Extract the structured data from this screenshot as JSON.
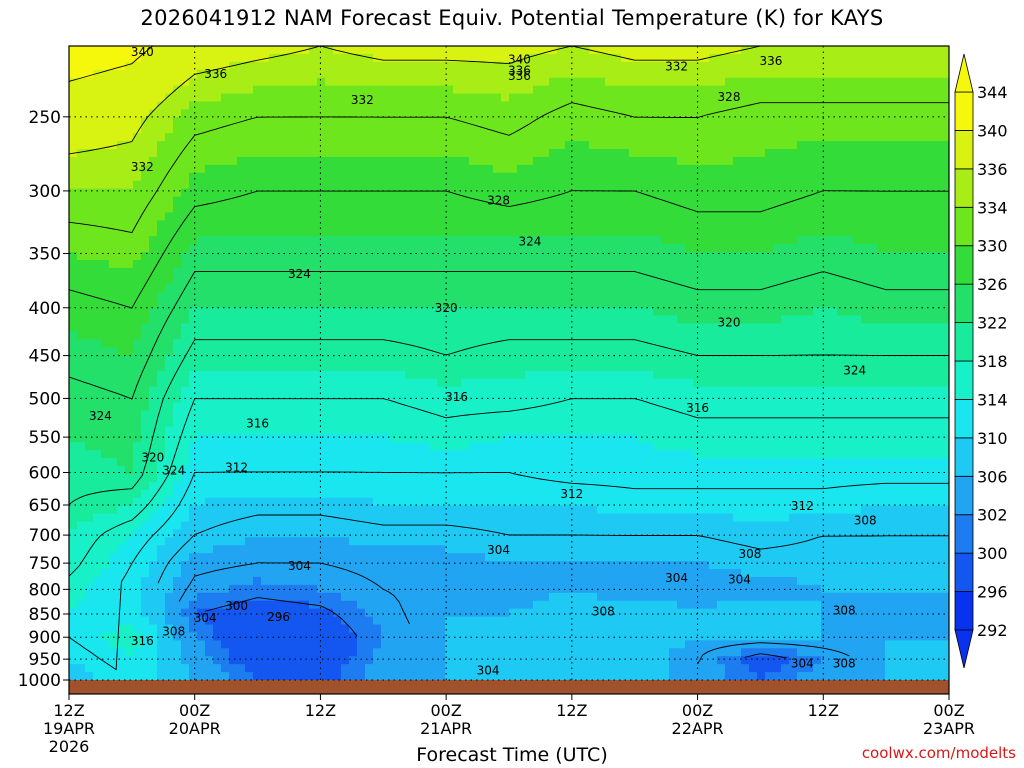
{
  "title": "2026041912 NAM Forecast Equiv. Potential Temperature (K) for KAYS",
  "credit": "coolwx.com/modelts",
  "chart_data": {
    "type": "heatmap",
    "title": "2026041912 NAM Forecast Equiv. Potential Temperature (K) for KAYS",
    "xlabel": "Forecast Time (UTC)",
    "ylabel": "",
    "xlim_hours": [
      0,
      84
    ],
    "ylim": [
      1000,
      210
    ],
    "yscale": "log",
    "grid": true,
    "y_ticks": [
      250,
      300,
      350,
      400,
      450,
      500,
      550,
      600,
      650,
      700,
      750,
      800,
      850,
      900,
      950,
      1000
    ],
    "x_ticks": [
      {
        "hour": 0,
        "label": "12Z",
        "sub": "19APR",
        "sub2": "2026"
      },
      {
        "hour": 12,
        "label": "00Z",
        "sub": "20APR",
        "sub2": ""
      },
      {
        "hour": 24,
        "label": "12Z",
        "sub": "",
        "sub2": ""
      },
      {
        "hour": 36,
        "label": "00Z",
        "sub": "21APR",
        "sub2": ""
      },
      {
        "hour": 48,
        "label": "12Z",
        "sub": "",
        "sub2": ""
      },
      {
        "hour": 60,
        "label": "00Z",
        "sub": "22APR",
        "sub2": ""
      },
      {
        "hour": 72,
        "label": "12Z",
        "sub": "",
        "sub2": ""
      },
      {
        "hour": 84,
        "label": "00Z",
        "sub": "23APR",
        "sub2": ""
      }
    ],
    "colorbar": {
      "levels": [
        292,
        296,
        300,
        302,
        306,
        310,
        314,
        318,
        322,
        326,
        330,
        334,
        336,
        340,
        344
      ],
      "colors": [
        "#0832f0",
        "#1457f0",
        "#1c7cf0",
        "#21a4f2",
        "#1ec9f4",
        "#1ae6f0",
        "#18f0c8",
        "#18eb9c",
        "#22e06a",
        "#34dc3a",
        "#6ee61e",
        "#a8ee16",
        "#d8f212",
        "#f6f80c"
      ]
    },
    "profile_levels": [
      1000,
      950,
      900,
      850,
      800,
      750,
      700,
      650,
      600,
      550,
      500,
      450,
      400,
      350,
      300,
      250,
      210
    ],
    "series": [
      {
        "hour": 0,
        "values": [
          308,
          310,
          312,
          314,
          315,
          317,
          318,
          320,
          321,
          322,
          323,
          325,
          327,
          330,
          334,
          338,
          342
        ]
      },
      {
        "hour": 6,
        "values": [
          312,
          314,
          316,
          312,
          311,
          312,
          314,
          318,
          322,
          323,
          324,
          326,
          328,
          331,
          334,
          337,
          341
        ]
      },
      {
        "hour": 12,
        "values": [
          306,
          304,
          302,
          300,
          303,
          305,
          308,
          310,
          312,
          314,
          316,
          319,
          322,
          325,
          329,
          333,
          338
        ]
      },
      {
        "hour": 18,
        "values": [
          300,
          297,
          296,
          298,
          301,
          304,
          306,
          309,
          312,
          314,
          316,
          319,
          322,
          325,
          328,
          332,
          337
        ]
      },
      {
        "hour": 24,
        "values": [
          299,
          297,
          297,
          299,
          302,
          304,
          306,
          309,
          312,
          314,
          316,
          319,
          322,
          325,
          328,
          332,
          336
        ]
      },
      {
        "hour": 30,
        "values": [
          304,
          303,
          302,
          303,
          304,
          305,
          307,
          310,
          312,
          314,
          316,
          319,
          322,
          325,
          328,
          332,
          337
        ]
      },
      {
        "hour": 36,
        "values": [
          306,
          306,
          306,
          306,
          305,
          305,
          307,
          310,
          312,
          315,
          317,
          320,
          322,
          325,
          328,
          332,
          337
        ]
      },
      {
        "hour": 42,
        "values": [
          306,
          306,
          306,
          306,
          305,
          306,
          308,
          310,
          312,
          314,
          317,
          319,
          322,
          325,
          329,
          333,
          337
        ]
      },
      {
        "hour": 48,
        "values": [
          307,
          307,
          307,
          307,
          306,
          306,
          308,
          310,
          313,
          314,
          316,
          319,
          322,
          325,
          328,
          331,
          336
        ]
      },
      {
        "hour": 54,
        "values": [
          308,
          308,
          308,
          307,
          305,
          306,
          308,
          311,
          313,
          314,
          316,
          319,
          322,
          325,
          328,
          332,
          337
        ]
      },
      {
        "hour": 60,
        "values": [
          304,
          304,
          306,
          307,
          304,
          306,
          308,
          311,
          313,
          315,
          317,
          320,
          323,
          326,
          329,
          332,
          337
        ]
      },
      {
        "hour": 66,
        "values": [
          300,
          298,
          306,
          307,
          305,
          307,
          309,
          311,
          313,
          315,
          317,
          320,
          323,
          326,
          329,
          331,
          336
        ]
      },
      {
        "hour": 72,
        "values": [
          304,
          302,
          306,
          306,
          306,
          307,
          308,
          311,
          313,
          315,
          317,
          320,
          322,
          325,
          328,
          331,
          336
        ]
      },
      {
        "hour": 78,
        "values": [
          306,
          306,
          306,
          304,
          306,
          307,
          308,
          310,
          313,
          315,
          317,
          320,
          323,
          326,
          328,
          331,
          336
        ]
      },
      {
        "hour": 84,
        "values": [
          308,
          308,
          306,
          304,
          306,
          307,
          308,
          310,
          313,
          315,
          317,
          320,
          323,
          326,
          328,
          331,
          336
        ]
      }
    ],
    "contour_labels": [
      {
        "value": "340",
        "hour": 7,
        "p": 213
      },
      {
        "value": "336",
        "hour": 14,
        "p": 225
      },
      {
        "value": "332",
        "hour": 7,
        "p": 283
      },
      {
        "value": "332",
        "hour": 28,
        "p": 240
      },
      {
        "value": "340",
        "hour": 43,
        "p": 217
      },
      {
        "value": "336",
        "hour": 43,
        "p": 223
      },
      {
        "value": "336",
        "hour": 43,
        "p": 226
      },
      {
        "value": "332",
        "hour": 58,
        "p": 221
      },
      {
        "value": "336",
        "hour": 67,
        "p": 218
      },
      {
        "value": "328",
        "hour": 63,
        "p": 238
      },
      {
        "value": "328",
        "hour": 41,
        "p": 307
      },
      {
        "value": "324",
        "hour": 44,
        "p": 340
      },
      {
        "value": "324",
        "hour": 22,
        "p": 368
      },
      {
        "value": "320",
        "hour": 36,
        "p": 400
      },
      {
        "value": "320",
        "hour": 63,
        "p": 415
      },
      {
        "value": "324",
        "hour": 75,
        "p": 467
      },
      {
        "value": "324",
        "hour": 3,
        "p": 522
      },
      {
        "value": "316",
        "hour": 18,
        "p": 532
      },
      {
        "value": "316",
        "hour": 37,
        "p": 498
      },
      {
        "value": "316",
        "hour": 60,
        "p": 512
      },
      {
        "value": "320",
        "hour": 8,
        "p": 578
      },
      {
        "value": "324",
        "hour": 10,
        "p": 597
      },
      {
        "value": "312",
        "hour": 16,
        "p": 593
      },
      {
        "value": "312",
        "hour": 48,
        "p": 633
      },
      {
        "value": "312",
        "hour": 70,
        "p": 652
      },
      {
        "value": "308",
        "hour": 76,
        "p": 675
      },
      {
        "value": "304",
        "hour": 22,
        "p": 755
      },
      {
        "value": "304",
        "hour": 41,
        "p": 726
      },
      {
        "value": "308",
        "hour": 65,
        "p": 733
      },
      {
        "value": "304",
        "hour": 58,
        "p": 778
      },
      {
        "value": "304",
        "hour": 64,
        "p": 781
      },
      {
        "value": "300",
        "hour": 16,
        "p": 833
      },
      {
        "value": "304",
        "hour": 13,
        "p": 858
      },
      {
        "value": "296",
        "hour": 20,
        "p": 856
      },
      {
        "value": "308",
        "hour": 10,
        "p": 887
      },
      {
        "value": "316",
        "hour": 7,
        "p": 908
      },
      {
        "value": "308",
        "hour": 51,
        "p": 845
      },
      {
        "value": "308",
        "hour": 74,
        "p": 843
      },
      {
        "value": "304",
        "hour": 40,
        "p": 977
      },
      {
        "value": "304",
        "hour": 70,
        "p": 960
      },
      {
        "value": "308",
        "hour": 74,
        "p": 960
      }
    ]
  }
}
